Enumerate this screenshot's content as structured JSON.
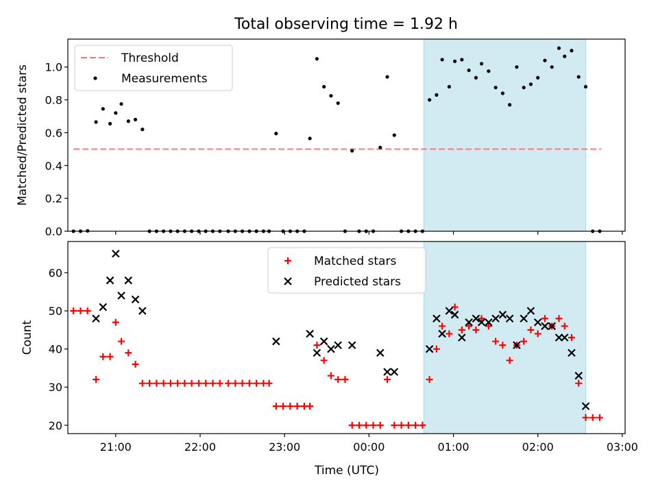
{
  "chart_data": [
    {
      "type": "scatter",
      "title": "Total observing time = 1.92 h",
      "xlabel": "",
      "ylabel": "Matched/Predicted stars",
      "ylim": [
        0,
        1.17
      ],
      "yticks": [
        "0.0",
        "0.2",
        "0.4",
        "0.6",
        "0.8",
        "1.0"
      ],
      "xlim": [
        "20:26",
        "03:02"
      ],
      "x_tick_labels_shown": false,
      "highlight_span": {
        "start": "00:39",
        "end": "02:34",
        "color": "#add8e6"
      },
      "legend": {
        "placement": "upper left",
        "entries": [
          "Threshold",
          "Measurements"
        ]
      },
      "threshold": {
        "name": "Threshold",
        "value": 0.5,
        "x_range": [
          "20:30",
          "02:45"
        ],
        "color": "#ff7777",
        "style": "dashed"
      },
      "series": [
        {
          "name": "Measurements",
          "color": "#000000",
          "marker": "dot",
          "points": [
            [
              "20:30",
              0
            ],
            [
              "20:35",
              0
            ],
            [
              "20:40",
              0.002
            ],
            [
              "20:46",
              0.665
            ],
            [
              "20:51",
              0.745
            ],
            [
              "20:56",
              0.655
            ],
            [
              "21:00",
              0.72
            ],
            [
              "21:04",
              0.775
            ],
            [
              "21:09",
              0.67
            ],
            [
              "21:14",
              0.68
            ],
            [
              "21:19",
              0.62
            ],
            [
              "21:24",
              0
            ],
            [
              "21:29",
              0
            ],
            [
              "21:34",
              0
            ],
            [
              "21:39",
              0
            ],
            [
              "21:44",
              0
            ],
            [
              "21:49",
              0
            ],
            [
              "21:54",
              0
            ],
            [
              "21:59",
              0
            ],
            [
              "22:04",
              0
            ],
            [
              "22:09",
              0
            ],
            [
              "22:14",
              0
            ],
            [
              "22:20",
              0
            ],
            [
              "22:25",
              0
            ],
            [
              "22:30",
              0
            ],
            [
              "22:35",
              0
            ],
            [
              "22:40",
              0
            ],
            [
              "22:45",
              0
            ],
            [
              "22:49",
              0
            ],
            [
              "22:54",
              0.595
            ],
            [
              "22:59",
              0
            ],
            [
              "23:04",
              0
            ],
            [
              "23:09",
              0
            ],
            [
              "23:14",
              0
            ],
            [
              "23:18",
              0.565
            ],
            [
              "23:23",
              1.05
            ],
            [
              "23:28",
              0.88
            ],
            [
              "23:33",
              0.825
            ],
            [
              "23:38",
              0.78
            ],
            [
              "23:43",
              0
            ],
            [
              "23:48",
              0.49
            ],
            [
              "23:53",
              0
            ],
            [
              "23:58",
              0
            ],
            [
              "00:03",
              0
            ],
            [
              "00:08",
              0.51
            ],
            [
              "00:13",
              0.94
            ],
            [
              "00:18",
              0.585
            ],
            [
              "00:23",
              0
            ],
            [
              "00:28",
              0
            ],
            [
              "00:33",
              0
            ],
            [
              "00:38",
              0
            ],
            [
              "00:43",
              0.8
            ],
            [
              "00:48",
              0.83
            ],
            [
              "00:52",
              1.045
            ],
            [
              "00:57",
              0.88
            ],
            [
              "01:01",
              1.035
            ],
            [
              "01:06",
              1.045
            ],
            [
              "01:11",
              0.98
            ],
            [
              "01:16",
              0.935
            ],
            [
              "01:20",
              1.02
            ],
            [
              "01:25",
              0.975
            ],
            [
              "01:30",
              0.875
            ],
            [
              "01:35",
              0.84
            ],
            [
              "01:40",
              0.77
            ],
            [
              "01:45",
              1.0
            ],
            [
              "01:50",
              0.875
            ],
            [
              "01:55",
              0.895
            ],
            [
              "02:00",
              0.935
            ],
            [
              "02:05",
              1.04
            ],
            [
              "02:10",
              1.0
            ],
            [
              "02:15",
              1.115
            ],
            [
              "02:19",
              1.065
            ],
            [
              "02:24",
              1.1
            ],
            [
              "02:29",
              0.94
            ],
            [
              "02:34",
              0.88
            ],
            [
              "02:39",
              0
            ],
            [
              "02:44",
              0
            ]
          ]
        }
      ]
    },
    {
      "type": "scatter",
      "title": "",
      "xlabel": "Time (UTC)",
      "ylabel": "Count",
      "ylim": [
        17.8,
        68.2
      ],
      "yticks": [
        "20",
        "30",
        "40",
        "50",
        "60"
      ],
      "xlim": [
        "20:26",
        "03:02"
      ],
      "xticks": [
        "21:00",
        "22:00",
        "23:00",
        "00:00",
        "01:00",
        "02:00",
        "03:00"
      ],
      "highlight_span": {
        "start": "00:39",
        "end": "02:34",
        "color": "#add8e6"
      },
      "legend": {
        "placement": "upper center",
        "entries": [
          "Matched stars",
          "Predicted stars"
        ]
      },
      "series": [
        {
          "name": "Matched stars",
          "color": "#ff0000",
          "marker": "plus",
          "points": [
            [
              "20:30",
              50
            ],
            [
              "20:35",
              50
            ],
            [
              "20:40",
              50
            ],
            [
              "20:46",
              32
            ],
            [
              "20:51",
              38
            ],
            [
              "20:56",
              38
            ],
            [
              "21:00",
              47
            ],
            [
              "21:04",
              42
            ],
            [
              "21:09",
              39
            ],
            [
              "21:14",
              36
            ],
            [
              "21:19",
              31
            ],
            [
              "21:24",
              31
            ],
            [
              "21:29",
              31
            ],
            [
              "21:34",
              31
            ],
            [
              "21:39",
              31
            ],
            [
              "21:44",
              31
            ],
            [
              "21:49",
              31
            ],
            [
              "21:54",
              31
            ],
            [
              "21:59",
              31
            ],
            [
              "22:04",
              31
            ],
            [
              "22:09",
              31
            ],
            [
              "22:14",
              31
            ],
            [
              "22:20",
              31
            ],
            [
              "22:25",
              31
            ],
            [
              "22:30",
              31
            ],
            [
              "22:35",
              31
            ],
            [
              "22:40",
              31
            ],
            [
              "22:45",
              31
            ],
            [
              "22:49",
              31
            ],
            [
              "22:54",
              25
            ],
            [
              "22:59",
              25
            ],
            [
              "23:04",
              25
            ],
            [
              "23:09",
              25
            ],
            [
              "23:14",
              25
            ],
            [
              "23:18",
              25
            ],
            [
              "23:23",
              41
            ],
            [
              "23:28",
              37
            ],
            [
              "23:33",
              33
            ],
            [
              "23:38",
              32
            ],
            [
              "23:43",
              32
            ],
            [
              "23:48",
              20
            ],
            [
              "23:53",
              20
            ],
            [
              "23:58",
              20
            ],
            [
              "00:03",
              20
            ],
            [
              "00:08",
              20
            ],
            [
              "00:13",
              32
            ],
            [
              "00:18",
              20
            ],
            [
              "00:23",
              20
            ],
            [
              "00:28",
              20
            ],
            [
              "00:33",
              20
            ],
            [
              "00:38",
              20
            ],
            [
              "00:43",
              32
            ],
            [
              "00:48",
              40
            ],
            [
              "00:52",
              46
            ],
            [
              "00:57",
              44
            ],
            [
              "01:01",
              51
            ],
            [
              "01:06",
              45
            ],
            [
              "01:11",
              46
            ],
            [
              "01:16",
              45
            ],
            [
              "01:20",
              48
            ],
            [
              "01:25",
              46
            ],
            [
              "01:30",
              42
            ],
            [
              "01:35",
              41
            ],
            [
              "01:40",
              37
            ],
            [
              "01:45",
              41
            ],
            [
              "01:50",
              42
            ],
            [
              "01:55",
              45
            ],
            [
              "02:00",
              44
            ],
            [
              "02:05",
              48
            ],
            [
              "02:10",
              46
            ],
            [
              "02:15",
              48
            ],
            [
              "02:19",
              46
            ],
            [
              "02:24",
              43
            ],
            [
              "02:29",
              31
            ],
            [
              "02:34",
              22
            ],
            [
              "02:39",
              22
            ],
            [
              "02:44",
              22
            ]
          ]
        },
        {
          "name": "Predicted stars",
          "color": "#000000",
          "marker": "x",
          "points": [
            [
              "20:46",
              48
            ],
            [
              "20:51",
              51
            ],
            [
              "20:56",
              58
            ],
            [
              "21:00",
              65
            ],
            [
              "21:04",
              54
            ],
            [
              "21:09",
              58
            ],
            [
              "21:14",
              53
            ],
            [
              "21:19",
              50
            ],
            [
              "22:54",
              42
            ],
            [
              "23:18",
              44
            ],
            [
              "23:23",
              39
            ],
            [
              "23:28",
              42
            ],
            [
              "23:33",
              40
            ],
            [
              "23:38",
              41
            ],
            [
              "23:48",
              41
            ],
            [
              "00:08",
              39
            ],
            [
              "00:13",
              34
            ],
            [
              "00:18",
              34
            ],
            [
              "00:43",
              40
            ],
            [
              "00:48",
              48
            ],
            [
              "00:52",
              44
            ],
            [
              "00:57",
              50
            ],
            [
              "01:01",
              49
            ],
            [
              "01:06",
              43
            ],
            [
              "01:11",
              47
            ],
            [
              "01:16",
              48
            ],
            [
              "01:20",
              47
            ],
            [
              "01:25",
              47
            ],
            [
              "01:30",
              48
            ],
            [
              "01:35",
              49
            ],
            [
              "01:40",
              48
            ],
            [
              "01:45",
              41
            ],
            [
              "01:50",
              48
            ],
            [
              "01:55",
              50
            ],
            [
              "02:00",
              47
            ],
            [
              "02:05",
              46
            ],
            [
              "02:10",
              46
            ],
            [
              "02:15",
              43
            ],
            [
              "02:19",
              43
            ],
            [
              "02:24",
              39
            ],
            [
              "02:29",
              33
            ],
            [
              "02:34",
              25
            ]
          ]
        }
      ]
    }
  ]
}
